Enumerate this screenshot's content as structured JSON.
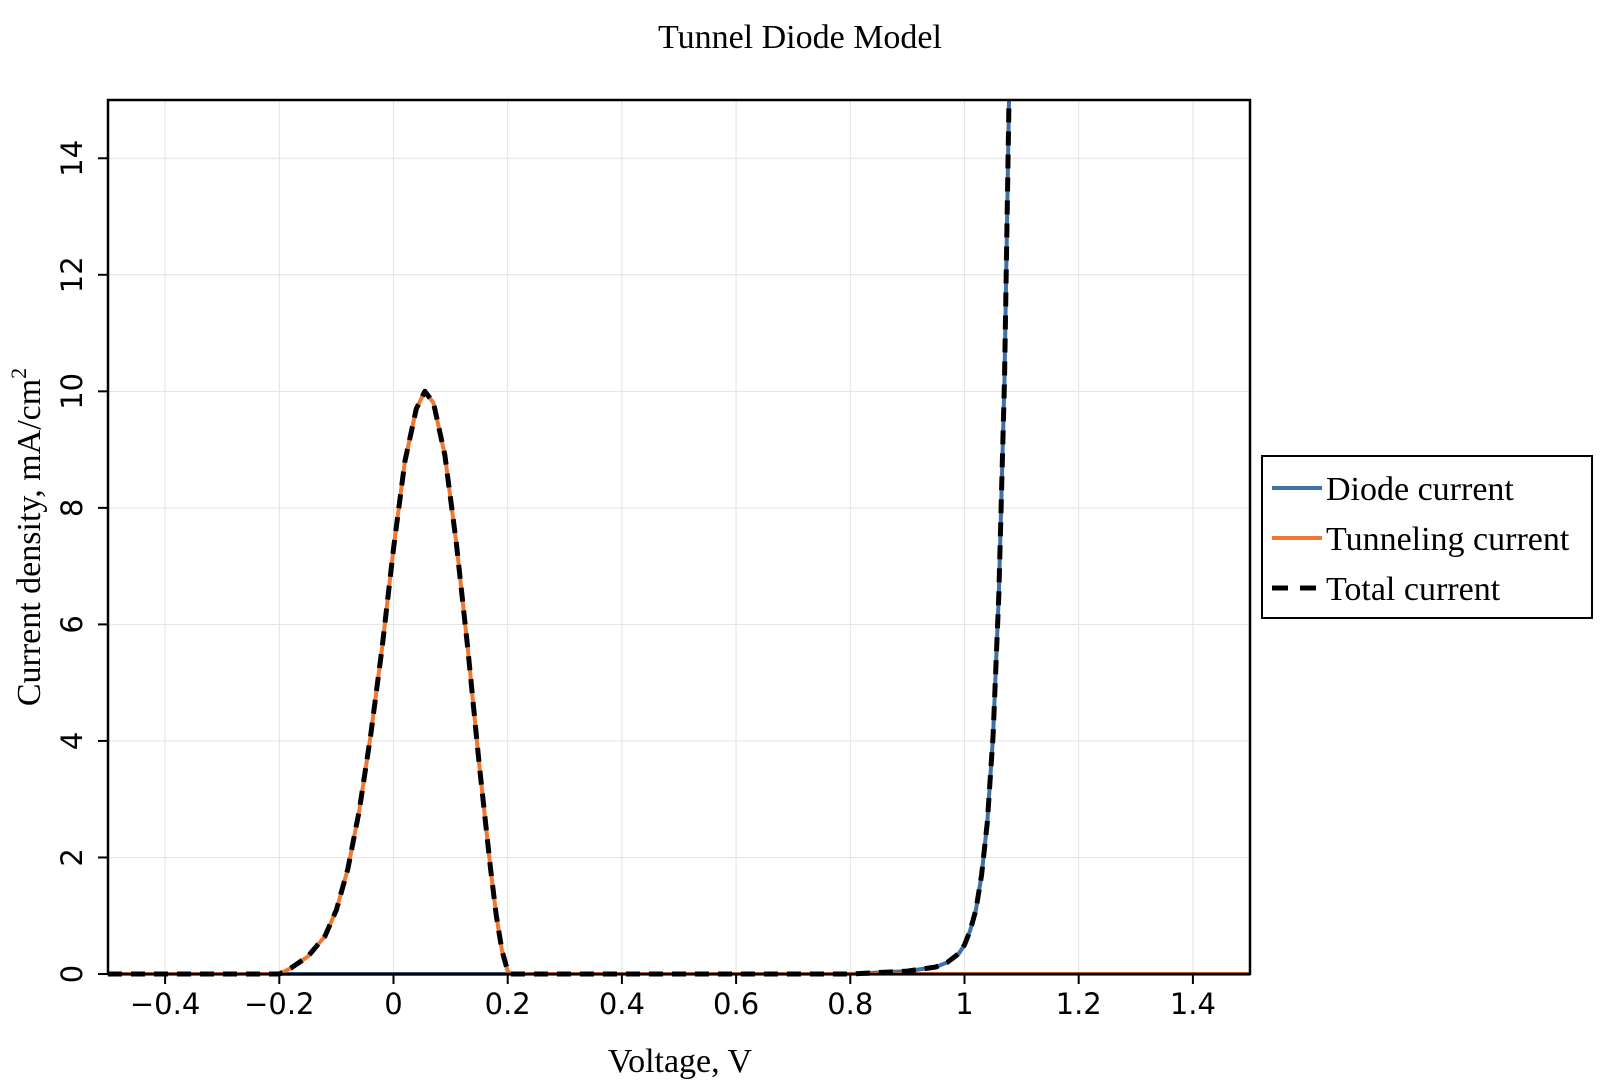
{
  "chart_data": {
    "type": "line",
    "title": "Tunnel Diode Model",
    "xlabel": "Voltage, V",
    "ylabel_main": "Current density, mA/cm",
    "ylabel_sup": "2",
    "xlim": [
      -0.5,
      1.5
    ],
    "ylim": [
      0,
      15
    ],
    "grid": true,
    "legend_position": "right",
    "x_ticks": [
      {
        "value": -0.4,
        "label": "−0.4"
      },
      {
        "value": -0.2,
        "label": "−0.2"
      },
      {
        "value": 0,
        "label": "0"
      },
      {
        "value": 0.2,
        "label": "0.2"
      },
      {
        "value": 0.4,
        "label": "0.4"
      },
      {
        "value": 0.6,
        "label": "0.6"
      },
      {
        "value": 0.8,
        "label": "0.8"
      },
      {
        "value": 1,
        "label": "1"
      },
      {
        "value": 1.2,
        "label": "1.2"
      },
      {
        "value": 1.4,
        "label": "1.4"
      }
    ],
    "y_ticks": [
      {
        "value": 0,
        "label": "0"
      },
      {
        "value": 2,
        "label": "2"
      },
      {
        "value": 4,
        "label": "4"
      },
      {
        "value": 6,
        "label": "6"
      },
      {
        "value": 8,
        "label": "8"
      },
      {
        "value": 10,
        "label": "10"
      },
      {
        "value": 12,
        "label": "12"
      },
      {
        "value": 14,
        "label": "14"
      }
    ],
    "series": [
      {
        "name": "Diode current",
        "color": "#4070a8",
        "style": "solid",
        "x": [
          -0.5,
          0.8,
          0.9,
          0.95,
          0.97,
          0.99,
          1.0,
          1.01,
          1.02,
          1.03,
          1.04,
          1.05,
          1.06,
          1.07,
          1.078
        ],
        "y": [
          0,
          0,
          0.05,
          0.12,
          0.2,
          0.35,
          0.5,
          0.75,
          1.1,
          1.7,
          2.6,
          4.1,
          6.5,
          10.2,
          15
        ]
      },
      {
        "name": "Tunneling current",
        "color": "#f07830",
        "style": "solid",
        "x": [
          -0.5,
          -0.2,
          -0.18,
          -0.15,
          -0.12,
          -0.1,
          -0.08,
          -0.06,
          -0.04,
          -0.02,
          0,
          0.02,
          0.04,
          0.055,
          0.07,
          0.09,
          0.11,
          0.13,
          0.15,
          0.17,
          0.18,
          0.19,
          0.2,
          0.205,
          1.5
        ],
        "y": [
          0,
          0,
          0.1,
          0.3,
          0.65,
          1.1,
          1.8,
          2.8,
          4.1,
          5.6,
          7.3,
          8.8,
          9.7,
          10.0,
          9.8,
          8.9,
          7.4,
          5.6,
          3.6,
          1.8,
          1.0,
          0.4,
          0.05,
          0,
          0
        ]
      },
      {
        "name": "Total current",
        "color": "#000000",
        "style": "dashed",
        "x": [
          -0.5,
          -0.2,
          -0.18,
          -0.15,
          -0.12,
          -0.1,
          -0.08,
          -0.06,
          -0.04,
          -0.02,
          0,
          0.02,
          0.04,
          0.055,
          0.07,
          0.09,
          0.11,
          0.13,
          0.15,
          0.17,
          0.18,
          0.19,
          0.2,
          0.205,
          0.8,
          0.9,
          0.95,
          0.97,
          0.99,
          1.0,
          1.01,
          1.02,
          1.03,
          1.04,
          1.05,
          1.06,
          1.07,
          1.078
        ],
        "y": [
          0,
          0,
          0.1,
          0.3,
          0.65,
          1.1,
          1.8,
          2.8,
          4.1,
          5.6,
          7.3,
          8.8,
          9.7,
          10.0,
          9.8,
          8.9,
          7.4,
          5.6,
          3.6,
          1.8,
          1.0,
          0.4,
          0.05,
          0,
          0,
          0.05,
          0.12,
          0.2,
          0.35,
          0.5,
          0.75,
          1.1,
          1.7,
          2.6,
          4.1,
          6.5,
          10.2,
          15
        ]
      }
    ]
  }
}
